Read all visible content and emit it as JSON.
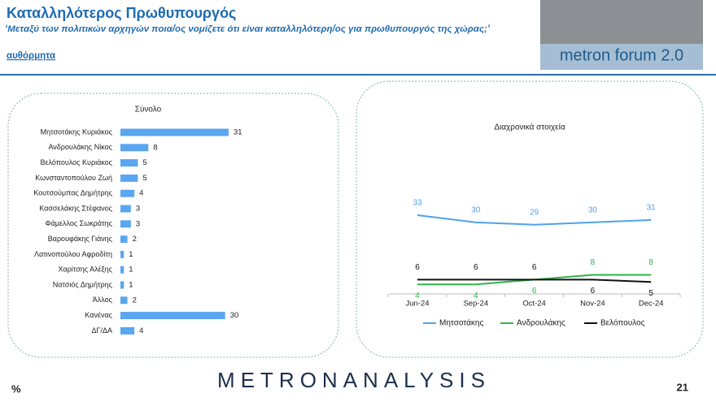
{
  "header": {
    "title": "Καταλληλότερος Πρωθυπουργός",
    "question": "‘Μεταξύ των πολιτικών αρχηγών ποια/ος νομίζετε ότι είναι καταλληλότερη/ος για πρωθυπουργός της χώρας;’",
    "note": "αυθόρμητα",
    "logo": "metron forum 2.0"
  },
  "chart_data": [
    {
      "type": "hbar",
      "title": "Σύνολο",
      "color": "#5aa6f0",
      "categories": [
        "Μητσοτάκης Κυριάκος",
        "Ανδρουλάκης Νίκος",
        "Βελόπουλος Κυριάκος",
        "Κωνσταντοπούλου Ζωή",
        "Κουτσούμπας Δημήτρης",
        "Κασσελάκης Στέφανος",
        "Φάμελλος Σωκράτης",
        "Βαρουφάκης Γιάνης",
        "Λατινοπούλου Αφροδίτη",
        "Χαρίτσης Αλέξης",
        "Νατσιός Δημήτρης",
        "Άλλος",
        "Κανένας",
        "ΔΓ/ΔΑ"
      ],
      "values": [
        31,
        8,
        5,
        5,
        4,
        3,
        3,
        2,
        1,
        1,
        1,
        2,
        30,
        4
      ]
    },
    {
      "type": "line",
      "title": "Διαχρονικά στοιχεία",
      "categories": [
        "Jun-24",
        "Sep-24",
        "Oct-24",
        "Nov-24",
        "Dec-24"
      ],
      "series": [
        {
          "name": "Μητσοτάκης",
          "color": "#4ea3ea",
          "values": [
            33,
            30,
            29,
            30,
            31
          ]
        },
        {
          "name": "Ανδρουλάκης",
          "color": "#2db34a",
          "values": [
            4,
            4,
            6,
            8,
            8
          ]
        },
        {
          "name": "Βελόπουλος",
          "color": "#111111",
          "values": [
            6,
            6,
            6,
            6,
            5
          ]
        }
      ]
    }
  ],
  "footer": {
    "brand": "METRONANALYSIS",
    "unit": "%",
    "page": "21"
  }
}
